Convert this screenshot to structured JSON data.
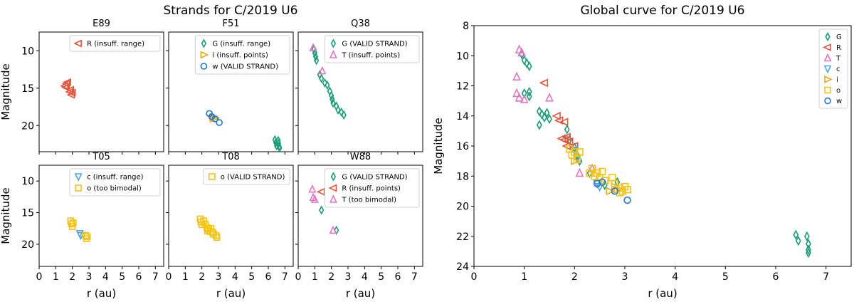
{
  "figure": {
    "left_title": "Strands for C/2019 U6",
    "right_title": "Global curve for C/2019 U6"
  },
  "colors": {
    "G": "#1a9e77",
    "R": "#e8533c",
    "T": "#e377c2",
    "c": "#4fa8e0",
    "i": "#e8a81a",
    "o": "#f5c211",
    "w": "#1f77d4"
  },
  "chart_data": [
    {
      "type": "scatter",
      "title": "E89",
      "xlabel": "",
      "ylabel": "Magnitude",
      "xlim": [
        0,
        7.5
      ],
      "ylim": [
        23.5,
        7.5
      ],
      "xticks": [
        0,
        1,
        2,
        3,
        4,
        5,
        6,
        7
      ],
      "yticks": [
        10,
        15,
        20
      ],
      "legend": [
        {
          "band": "R",
          "text": "R (insuff. range)"
        }
      ],
      "series": [
        {
          "band": "R",
          "points": [
            [
              1.55,
              14.7
            ],
            [
              1.65,
              14.4
            ],
            [
              1.72,
              14.2
            ],
            [
              1.62,
              14.9
            ],
            [
              1.85,
              15.5
            ],
            [
              1.95,
              15.9
            ],
            [
              2.0,
              15.6
            ],
            [
              1.9,
              15.2
            ]
          ]
        }
      ]
    },
    {
      "type": "scatter",
      "title": "F51",
      "xlabel": "",
      "ylabel": "",
      "xlim": [
        0,
        7.5
      ],
      "ylim": [
        23.5,
        7.5
      ],
      "xticks": [
        0,
        1,
        2,
        3,
        4,
        5,
        6,
        7
      ],
      "yticks": [
        10,
        15,
        20
      ],
      "legend": [
        {
          "band": "G",
          "text": "G (insuff. range)"
        },
        {
          "band": "i",
          "text": "i (insuff. points)"
        },
        {
          "band": "w",
          "text": "w (VALID STRAND)"
        }
      ],
      "series": [
        {
          "band": "G",
          "points": [
            [
              6.4,
              21.9
            ],
            [
              6.45,
              22.3
            ],
            [
              6.5,
              22.7
            ],
            [
              6.6,
              22.0
            ],
            [
              6.62,
              22.4
            ],
            [
              6.65,
              22.8
            ],
            [
              6.68,
              23.0
            ]
          ]
        },
        {
          "band": "i",
          "points": [
            [
              2.65,
              18.9
            ],
            [
              2.7,
              19.1
            ],
            [
              2.8,
              19.0
            ]
          ]
        },
        {
          "band": "w",
          "points": [
            [
              2.45,
              18.4
            ],
            [
              2.6,
              18.8
            ],
            [
              2.8,
              19.1
            ],
            [
              3.05,
              19.6
            ]
          ]
        }
      ]
    },
    {
      "type": "scatter",
      "title": "Q38",
      "xlabel": "",
      "ylabel": "",
      "xlim": [
        0,
        7.5
      ],
      "ylim": [
        23.5,
        7.5
      ],
      "xticks": [
        0,
        1,
        2,
        3,
        4,
        5,
        6,
        7
      ],
      "yticks": [
        10,
        15,
        20
      ],
      "legend": [
        {
          "band": "G",
          "text": "G (VALID STRAND)"
        },
        {
          "band": "T",
          "text": "T (insuff. points)"
        }
      ],
      "series": [
        {
          "band": "G",
          "points": [
            [
              0.95,
              9.8
            ],
            [
              1.0,
              10.3
            ],
            [
              1.05,
              10.8
            ],
            [
              1.1,
              11.3
            ],
            [
              1.3,
              13.2
            ],
            [
              1.4,
              13.7
            ],
            [
              1.6,
              14.3
            ],
            [
              1.75,
              14.6
            ],
            [
              1.9,
              15.4
            ],
            [
              2.0,
              16.0
            ],
            [
              2.05,
              16.5
            ],
            [
              2.1,
              17.0
            ],
            [
              2.3,
              17.4
            ],
            [
              2.4,
              17.9
            ],
            [
              2.6,
              18.2
            ],
            [
              2.75,
              18.6
            ]
          ]
        },
        {
          "band": "T",
          "points": [
            [
              0.9,
              9.6
            ],
            [
              1.45,
              12.7
            ]
          ]
        }
      ]
    },
    {
      "type": "scatter",
      "title": "T05",
      "xlabel": "r (au)",
      "ylabel": "Magnitude",
      "xlim": [
        0,
        7.5
      ],
      "ylim": [
        23.5,
        7.5
      ],
      "xticks": [
        0,
        1,
        2,
        3,
        4,
        5,
        6,
        7
      ],
      "yticks": [
        10,
        15,
        20
      ],
      "legend": [
        {
          "band": "c",
          "text": "c (insuff. range)"
        },
        {
          "band": "o",
          "text": "o (too bimodal)"
        }
      ],
      "series": [
        {
          "band": "c",
          "points": [
            [
              2.45,
              18.3
            ],
            [
              2.5,
              18.6
            ]
          ]
        },
        {
          "band": "o",
          "points": [
            [
              1.9,
              16.3
            ],
            [
              1.95,
              16.8
            ],
            [
              2.05,
              16.6
            ],
            [
              2.0,
              17.2
            ],
            [
              2.8,
              18.6
            ],
            [
              2.85,
              19.1
            ],
            [
              2.9,
              18.8
            ]
          ]
        }
      ]
    },
    {
      "type": "scatter",
      "title": "T08",
      "xlabel": "r (au)",
      "ylabel": "",
      "xlim": [
        0,
        7.5
      ],
      "ylim": [
        23.5,
        7.5
      ],
      "xticks": [
        0,
        1,
        2,
        3,
        4,
        5,
        6,
        7
      ],
      "yticks": [
        10,
        15,
        20
      ],
      "legend": [
        {
          "band": "o",
          "text": "o (VALID STRAND)"
        }
      ],
      "series": [
        {
          "band": "o",
          "points": [
            [
              1.9,
              16.0
            ],
            [
              1.95,
              16.5
            ],
            [
              2.0,
              16.9
            ],
            [
              2.1,
              16.3
            ],
            [
              2.2,
              16.8
            ],
            [
              2.3,
              17.4
            ],
            [
              2.35,
              17.9
            ],
            [
              2.4,
              17.6
            ],
            [
              2.5,
              18.0
            ],
            [
              2.55,
              17.5
            ],
            [
              2.65,
              18.1
            ],
            [
              2.7,
              18.4
            ],
            [
              2.85,
              18.6
            ],
            [
              2.9,
              18.9
            ]
          ]
        }
      ]
    },
    {
      "type": "scatter",
      "title": "W88",
      "xlabel": "r (au)",
      "ylabel": "",
      "xlim": [
        0,
        7.5
      ],
      "ylim": [
        23.5,
        7.5
      ],
      "xticks": [
        0,
        1,
        2,
        3,
        4,
        5,
        6,
        7
      ],
      "yticks": [
        10,
        15,
        20
      ],
      "legend": [
        {
          "band": "G",
          "text": "G (VALID STRAND)"
        },
        {
          "band": "R",
          "text": "R (insuff. points)"
        },
        {
          "band": "T",
          "text": "T (too bimodal)"
        }
      ],
      "series": [
        {
          "band": "G",
          "points": [
            [
              1.4,
              14.6
            ],
            [
              2.3,
              17.8
            ]
          ]
        },
        {
          "band": "R",
          "points": [
            [
              1.4,
              11.7
            ]
          ]
        },
        {
          "band": "T",
          "points": [
            [
              0.85,
              11.3
            ],
            [
              0.9,
              12.6
            ],
            [
              1.0,
              12.9
            ],
            [
              2.1,
              17.8
            ]
          ]
        }
      ]
    },
    {
      "type": "scatter",
      "title": "Global curve for C/2019 U6",
      "xlabel": "r (au)",
      "ylabel": "Magnitude",
      "xlim": [
        0,
        7.5
      ],
      "ylim": [
        24,
        8
      ],
      "xticks": [
        0,
        1,
        2,
        3,
        4,
        5,
        6,
        7
      ],
      "yticks": [
        8,
        10,
        12,
        14,
        16,
        18,
        20,
        22,
        24
      ],
      "legend": [
        {
          "band": "G",
          "text": "G"
        },
        {
          "band": "R",
          "text": "R"
        },
        {
          "band": "T",
          "text": "T"
        },
        {
          "band": "c",
          "text": "c"
        },
        {
          "band": "i",
          "text": "i"
        },
        {
          "band": "o",
          "text": "o"
        },
        {
          "band": "w",
          "text": "w"
        }
      ],
      "series": [
        {
          "band": "G",
          "points": [
            [
              0.95,
              9.9
            ],
            [
              1.0,
              10.3
            ],
            [
              1.05,
              10.5
            ],
            [
              1.1,
              10.7
            ],
            [
              1.0,
              12.5
            ],
            [
              1.1,
              12.4
            ],
            [
              1.1,
              12.7
            ],
            [
              1.3,
              13.7
            ],
            [
              1.35,
              13.9
            ],
            [
              1.4,
              14.1
            ],
            [
              1.45,
              13.8
            ],
            [
              1.5,
              14.2
            ],
            [
              1.3,
              14.6
            ],
            [
              1.85,
              14.9
            ],
            [
              1.9,
              15.6
            ],
            [
              2.0,
              16.1
            ],
            [
              2.05,
              16.6
            ],
            [
              2.1,
              17.0
            ],
            [
              2.3,
              17.8
            ],
            [
              2.6,
              18.6
            ],
            [
              2.85,
              18.4
            ],
            [
              6.4,
              21.9
            ],
            [
              6.45,
              22.3
            ],
            [
              6.62,
              22.0
            ],
            [
              6.65,
              22.5
            ],
            [
              6.65,
              22.9
            ],
            [
              6.65,
              23.1
            ]
          ]
        },
        {
          "band": "R",
          "points": [
            [
              1.4,
              11.8
            ],
            [
              1.65,
              14.0
            ],
            [
              1.7,
              14.3
            ],
            [
              1.8,
              14.4
            ],
            [
              1.75,
              15.5
            ],
            [
              1.8,
              15.6
            ],
            [
              1.85,
              15.4
            ],
            [
              1.85,
              16.0
            ],
            [
              1.9,
              15.7
            ],
            [
              2.0,
              16.0
            ]
          ]
        },
        {
          "band": "T",
          "points": [
            [
              0.9,
              9.6
            ],
            [
              0.95,
              9.8
            ],
            [
              0.85,
              11.4
            ],
            [
              0.85,
              12.5
            ],
            [
              0.9,
              12.8
            ],
            [
              1.0,
              12.9
            ],
            [
              1.5,
              12.8
            ],
            [
              2.1,
              17.8
            ],
            [
              2.35,
              17.5
            ]
          ]
        },
        {
          "band": "c",
          "points": [
            [
              2.0,
              16.3
            ],
            [
              2.05,
              16.8
            ],
            [
              2.45,
              18.5
            ],
            [
              2.5,
              18.7
            ]
          ]
        },
        {
          "band": "i",
          "points": [
            [
              2.0,
              17.0
            ],
            [
              2.7,
              19.0
            ],
            [
              2.8,
              18.7
            ],
            [
              2.85,
              18.9
            ]
          ]
        },
        {
          "band": "o",
          "points": [
            [
              1.9,
              16.2
            ],
            [
              1.95,
              16.6
            ],
            [
              2.0,
              16.4
            ],
            [
              2.05,
              16.9
            ],
            [
              2.1,
              16.4
            ],
            [
              2.3,
              17.8
            ],
            [
              2.35,
              17.5
            ],
            [
              2.4,
              18.0
            ],
            [
              2.45,
              17.8
            ],
            [
              2.5,
              18.1
            ],
            [
              2.55,
              17.7
            ],
            [
              2.6,
              18.3
            ],
            [
              2.75,
              18.1
            ],
            [
              2.8,
              18.5
            ],
            [
              2.9,
              18.8
            ],
            [
              2.95,
              19.0
            ],
            [
              3.0,
              18.7
            ],
            [
              3.05,
              18.9
            ],
            [
              2.9,
              19.1
            ]
          ]
        },
        {
          "band": "w",
          "points": [
            [
              2.45,
              18.5
            ],
            [
              2.55,
              18.4
            ],
            [
              2.8,
              19.0
            ],
            [
              3.05,
              19.6
            ]
          ]
        }
      ]
    }
  ]
}
